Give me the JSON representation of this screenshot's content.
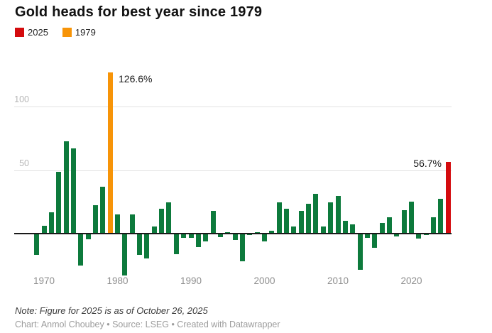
{
  "title": "Gold heads for best year since 1979",
  "legend": [
    {
      "label": "2025",
      "color": "#d40b0e"
    },
    {
      "label": "1979",
      "color": "#f79408"
    }
  ],
  "colors": {
    "bar_default": "#0d7a3c",
    "bar_2025": "#d40b0e",
    "bar_1979": "#f79408",
    "gridline": "#e3e3e3",
    "baseline": "#1a1a1a",
    "x_axis_text": "#8f8f8f",
    "y_axis_text": "#b6b6b6",
    "annotation_text": "#1b1b1b"
  },
  "chart_data": {
    "type": "bar",
    "title": "Gold heads for best year since 1979",
    "xlabel": "",
    "ylabel": "",
    "unit": "%",
    "ylim": [
      -35,
      130
    ],
    "y_ticks": [
      50,
      100
    ],
    "x_ticks": [
      "1970",
      "1980",
      "1990",
      "2000",
      "2010",
      "2020"
    ],
    "grid": "horizontal",
    "legend_position": "top-left",
    "categories": [
      1969,
      1970,
      1971,
      1972,
      1973,
      1974,
      1975,
      1976,
      1977,
      1978,
      1979,
      1980,
      1981,
      1982,
      1983,
      1984,
      1985,
      1986,
      1987,
      1988,
      1989,
      1990,
      1991,
      1992,
      1993,
      1994,
      1995,
      1996,
      1997,
      1998,
      1999,
      2000,
      2001,
      2002,
      2003,
      2004,
      2005,
      2006,
      2007,
      2008,
      2009,
      2010,
      2011,
      2012,
      2013,
      2014,
      2015,
      2016,
      2017,
      2018,
      2019,
      2020,
      2021,
      2022,
      2023,
      2024,
      2025
    ],
    "values": [
      -16,
      6,
      16.6,
      48.7,
      72.9,
      66.9,
      -24.8,
      -4.1,
      22.6,
      37,
      126.6,
      15.2,
      -32.6,
      14.9,
      -16.3,
      -19.2,
      5.8,
      19.6,
      24.5,
      -15.7,
      -2.8,
      -2.7,
      -10,
      -5.7,
      17.7,
      -2.2,
      1.0,
      -4.6,
      -21.4,
      -0.8,
      0.9,
      -5.4,
      2.5,
      24.8,
      19.5,
      5.5,
      17.8,
      23.2,
      31.4,
      5.8,
      24.4,
      29.5,
      10.1,
      7.0,
      -28.0,
      -2.8,
      -10.4,
      8.5,
      13.1,
      -1.6,
      18.3,
      25.1,
      -3.6,
      -0.3,
      13.1,
      27.2,
      56.7
    ],
    "highlight_years": {
      "1979": "#f79408",
      "2025": "#d40b0e"
    },
    "annotations": [
      {
        "text": "126.6%",
        "year": 1979,
        "side": "right"
      },
      {
        "text": "56.7%",
        "year": 2025,
        "side": "left"
      }
    ]
  },
  "footer": {
    "note": "Note: Figure for 2025 is as of October 26, 2025",
    "credit": "Chart: Anmol Choubey • Source: LSEG • Created with Datawrapper"
  }
}
